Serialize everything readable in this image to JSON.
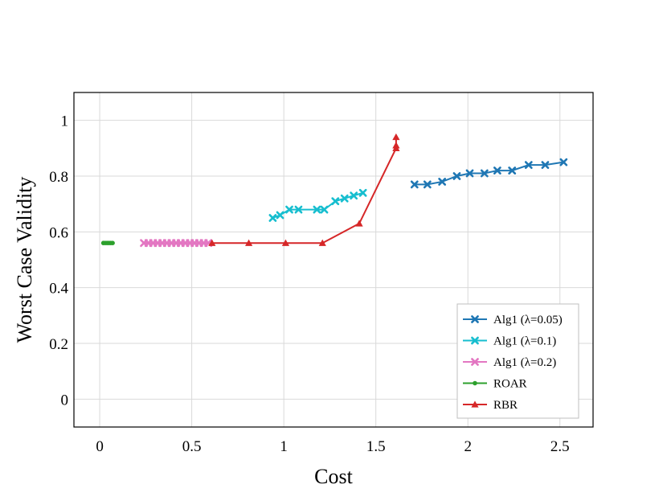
{
  "chart_data": {
    "type": "line",
    "xlabel": "Cost",
    "ylabel": "Worst Case Validity",
    "xlim": [
      -0.14,
      2.68
    ],
    "ylim": [
      -0.1,
      1.1
    ],
    "xticks": [
      0,
      0.5,
      1,
      1.5,
      2,
      2.5
    ],
    "xtick_labels": [
      "0",
      "0.5",
      "1",
      "1.5",
      "2",
      "2.5"
    ],
    "yticks": [
      0,
      0.2,
      0.4,
      0.6,
      0.8,
      1
    ],
    "ytick_labels": [
      "0",
      "0.2",
      "0.4",
      "0.6",
      "0.8",
      "1"
    ],
    "grid": true,
    "legend_position": "bottom-right",
    "series": [
      {
        "name": "Alg1 (λ=0.05)",
        "color": "#1f77b4",
        "marker": "x",
        "x": [
          1.71,
          1.78,
          1.86,
          1.94,
          2.01,
          2.09,
          2.16,
          2.24,
          2.33,
          2.42,
          2.52
        ],
        "y": [
          0.77,
          0.77,
          0.78,
          0.8,
          0.81,
          0.81,
          0.82,
          0.82,
          0.84,
          0.84,
          0.85
        ]
      },
      {
        "name": "Alg1 (λ=0.1)",
        "color": "#17becf",
        "marker": "x",
        "x": [
          0.94,
          0.98,
          1.03,
          1.08,
          1.18,
          1.22,
          1.28,
          1.33,
          1.38,
          1.43
        ],
        "y": [
          0.65,
          0.66,
          0.68,
          0.68,
          0.68,
          0.68,
          0.71,
          0.72,
          0.73,
          0.74
        ]
      },
      {
        "name": "Alg1 (λ=0.2)",
        "color": "#e377c2",
        "marker": "x",
        "x": [
          0.24,
          0.265,
          0.29,
          0.315,
          0.34,
          0.365,
          0.39,
          0.415,
          0.44,
          0.465,
          0.49,
          0.515,
          0.54,
          0.565,
          0.59
        ],
        "y": [
          0.56,
          0.56,
          0.56,
          0.56,
          0.56,
          0.56,
          0.56,
          0.56,
          0.56,
          0.56,
          0.56,
          0.56,
          0.56,
          0.56,
          0.56
        ]
      },
      {
        "name": "ROAR",
        "color": "#2ca02c",
        "marker": "dot",
        "x": [
          0.02,
          0.03,
          0.04,
          0.05,
          0.06,
          0.07
        ],
        "y": [
          0.56,
          0.56,
          0.56,
          0.56,
          0.56,
          0.56
        ]
      },
      {
        "name": "RBR",
        "color": "#d62728",
        "marker": "triangle",
        "x": [
          0.61,
          0.81,
          1.01,
          1.21,
          1.41,
          1.61,
          1.61,
          1.61
        ],
        "y": [
          0.56,
          0.56,
          0.56,
          0.56,
          0.63,
          0.9,
          0.91,
          0.94
        ]
      }
    ]
  }
}
